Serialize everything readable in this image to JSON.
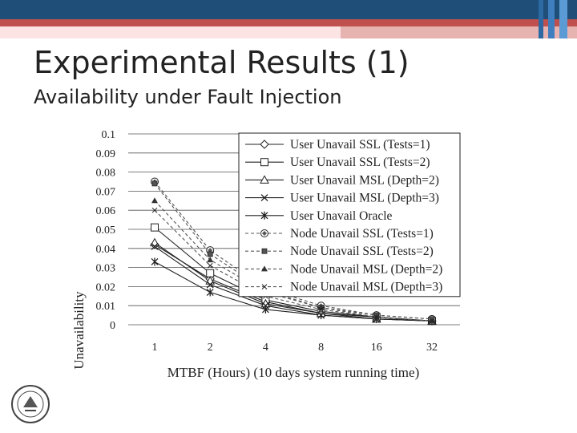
{
  "slide": {
    "title": "Experimental Results (1)",
    "subtitle": "Availability under Fault Injection"
  },
  "colors": {
    "band_dark": "#1f4e79",
    "band_red": "#c0504d",
    "band_pale": "#fbe4e3"
  },
  "logo": {
    "icon": "university-seal-icon"
  },
  "chart_data": {
    "type": "line",
    "title": "",
    "xlabel": "MTBF (Hours) (10 days system running time)",
    "ylabel": "Unavailability",
    "x": [
      "1",
      "2",
      "4",
      "8",
      "16",
      "32"
    ],
    "x_scale": "log2",
    "ylim": [
      0,
      0.1
    ],
    "yticks": [
      "0",
      "0.01",
      "0.02",
      "0.03",
      "0.04",
      "0.05",
      "0.06",
      "0.07",
      "0.08",
      "0.09",
      "0.1"
    ],
    "grid": "horizontal",
    "legend_position": "top-right",
    "series": [
      {
        "name": "User Unavail SSL (Tests=1)",
        "marker": "diamond",
        "line": "solid",
        "values": [
          0.042,
          0.024,
          0.012,
          0.006,
          0.004,
          0.002
        ]
      },
      {
        "name": "User Unavail SSL (Tests=2)",
        "marker": "square",
        "line": "solid",
        "values": [
          0.051,
          0.027,
          0.013,
          0.007,
          0.004,
          0.002
        ]
      },
      {
        "name": "User Unavail MSL (Depth=2)",
        "marker": "triangle",
        "line": "solid",
        "values": [
          0.043,
          0.023,
          0.011,
          0.006,
          0.003,
          0.002
        ]
      },
      {
        "name": "User Unavail MSL (Depth=3)",
        "marker": "x",
        "line": "solid",
        "values": [
          0.041,
          0.021,
          0.01,
          0.005,
          0.003,
          0.002
        ]
      },
      {
        "name": "User Unavail Oracle",
        "marker": "asterisk",
        "line": "solid",
        "values": [
          0.033,
          0.017,
          0.008,
          0.005,
          0.003,
          0.002
        ]
      },
      {
        "name": "Node Unavail SSL (Tests=1)",
        "marker": "circle-diamond",
        "line": "dashed",
        "values": [
          0.075,
          0.039,
          0.019,
          0.01,
          0.005,
          0.003
        ]
      },
      {
        "name": "Node Unavail SSL (Tests=2)",
        "marker": "small-square",
        "line": "dashed",
        "values": [
          0.074,
          0.037,
          0.018,
          0.009,
          0.005,
          0.003
        ]
      },
      {
        "name": "Node Unavail MSL (Depth=2)",
        "marker": "small-triangle",
        "line": "dashed",
        "values": [
          0.065,
          0.034,
          0.017,
          0.009,
          0.004,
          0.002
        ]
      },
      {
        "name": "Node Unavail MSL (Depth=3)",
        "marker": "small-x",
        "line": "dashed",
        "values": [
          0.06,
          0.031,
          0.015,
          0.008,
          0.004,
          0.002
        ]
      }
    ]
  }
}
